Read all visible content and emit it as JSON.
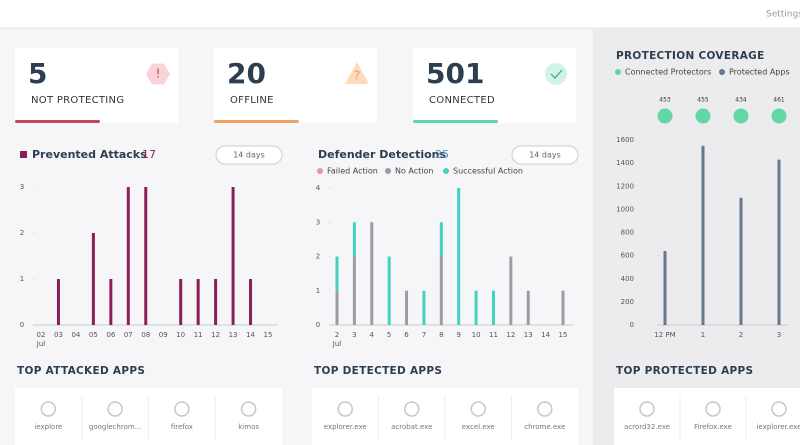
{
  "topbar": {
    "settings": "Settings"
  },
  "stats": [
    {
      "value": 5,
      "label": "NOT PROTECTING",
      "icon": "!"
    },
    {
      "value": 20,
      "label": "OFFLINE",
      "icon": "?"
    },
    {
      "value": 501,
      "label": "CONNECTED"
    }
  ],
  "chart_data": [
    {
      "type": "bar",
      "title": "Prevented Attacks",
      "total": 17,
      "period": "14 days",
      "categories": [
        "02",
        "03",
        "04",
        "05",
        "06",
        "07",
        "08",
        "09",
        "10",
        "11",
        "12",
        "13",
        "14",
        "15"
      ],
      "x_sublabel": "Jul",
      "values": [
        0,
        1,
        0,
        2,
        1,
        3,
        3,
        0,
        1,
        1,
        1,
        3,
        1,
        0
      ],
      "color": "#8b1e5b",
      "ylim": [
        0,
        3
      ],
      "yticks": [
        0,
        1,
        2,
        3
      ],
      "grid": false
    },
    {
      "type": "stacked_bar",
      "title": "Defender Detections",
      "total": 25,
      "period": "14 days",
      "categories": [
        "2",
        "3",
        "4",
        "5",
        "6",
        "7",
        "8",
        "9",
        "10",
        "11",
        "12",
        "13",
        "14",
        "15"
      ],
      "x_sublabel": "Jul",
      "series": [
        {
          "name": "Failed Action",
          "color": "#ec8fa0",
          "values": [
            0,
            0,
            0,
            0,
            0,
            0,
            0,
            0,
            0,
            0,
            0,
            0,
            0,
            0
          ]
        },
        {
          "name": "No Action",
          "color": "#9c9ca4",
          "values": [
            1,
            2,
            3,
            0,
            1,
            0,
            2,
            0,
            0,
            0,
            2,
            1,
            0,
            1
          ]
        },
        {
          "name": "Successful Action",
          "color": "#45d1c1",
          "values": [
            1,
            1,
            0,
            2,
            0,
            1,
            1,
            4,
            1,
            1,
            0,
            0,
            0,
            0
          ]
        }
      ],
      "ylim": [
        0,
        4
      ],
      "yticks": [
        0,
        1,
        2,
        3,
        4
      ],
      "grid": false
    },
    {
      "type": "bar_dots",
      "title": "PROTECTION COVERAGE",
      "categories": [
        "12 PM",
        "1",
        "2",
        "3"
      ],
      "series": [
        {
          "name": "Connected Protectors",
          "color": "#62d6a4",
          "values": [
            453,
            455,
            434,
            461
          ]
        },
        {
          "name": "Protected Apps",
          "color": "#62798f",
          "values": [
            640,
            1550,
            1100,
            1430
          ]
        }
      ],
      "ylim": [
        0,
        1600
      ],
      "yticks": [
        0,
        200,
        400,
        600,
        800,
        1000,
        1200,
        1400,
        1600
      ],
      "grid": false
    }
  ],
  "apps": [
    {
      "title": "TOP ATTACKED APPS",
      "items": [
        "iexplore",
        "googlechrom...",
        "firefox",
        "kimos"
      ]
    },
    {
      "title": "TOP DETECTED APPS",
      "items": [
        "explorer.exe",
        "acrobat.exe",
        "excel.exe",
        "chrome.exe"
      ]
    },
    {
      "title": "TOP PROTECTED APPS",
      "items": [
        "acrord32.exe",
        "Firefox.exe",
        "iexplorer.exe"
      ]
    }
  ]
}
